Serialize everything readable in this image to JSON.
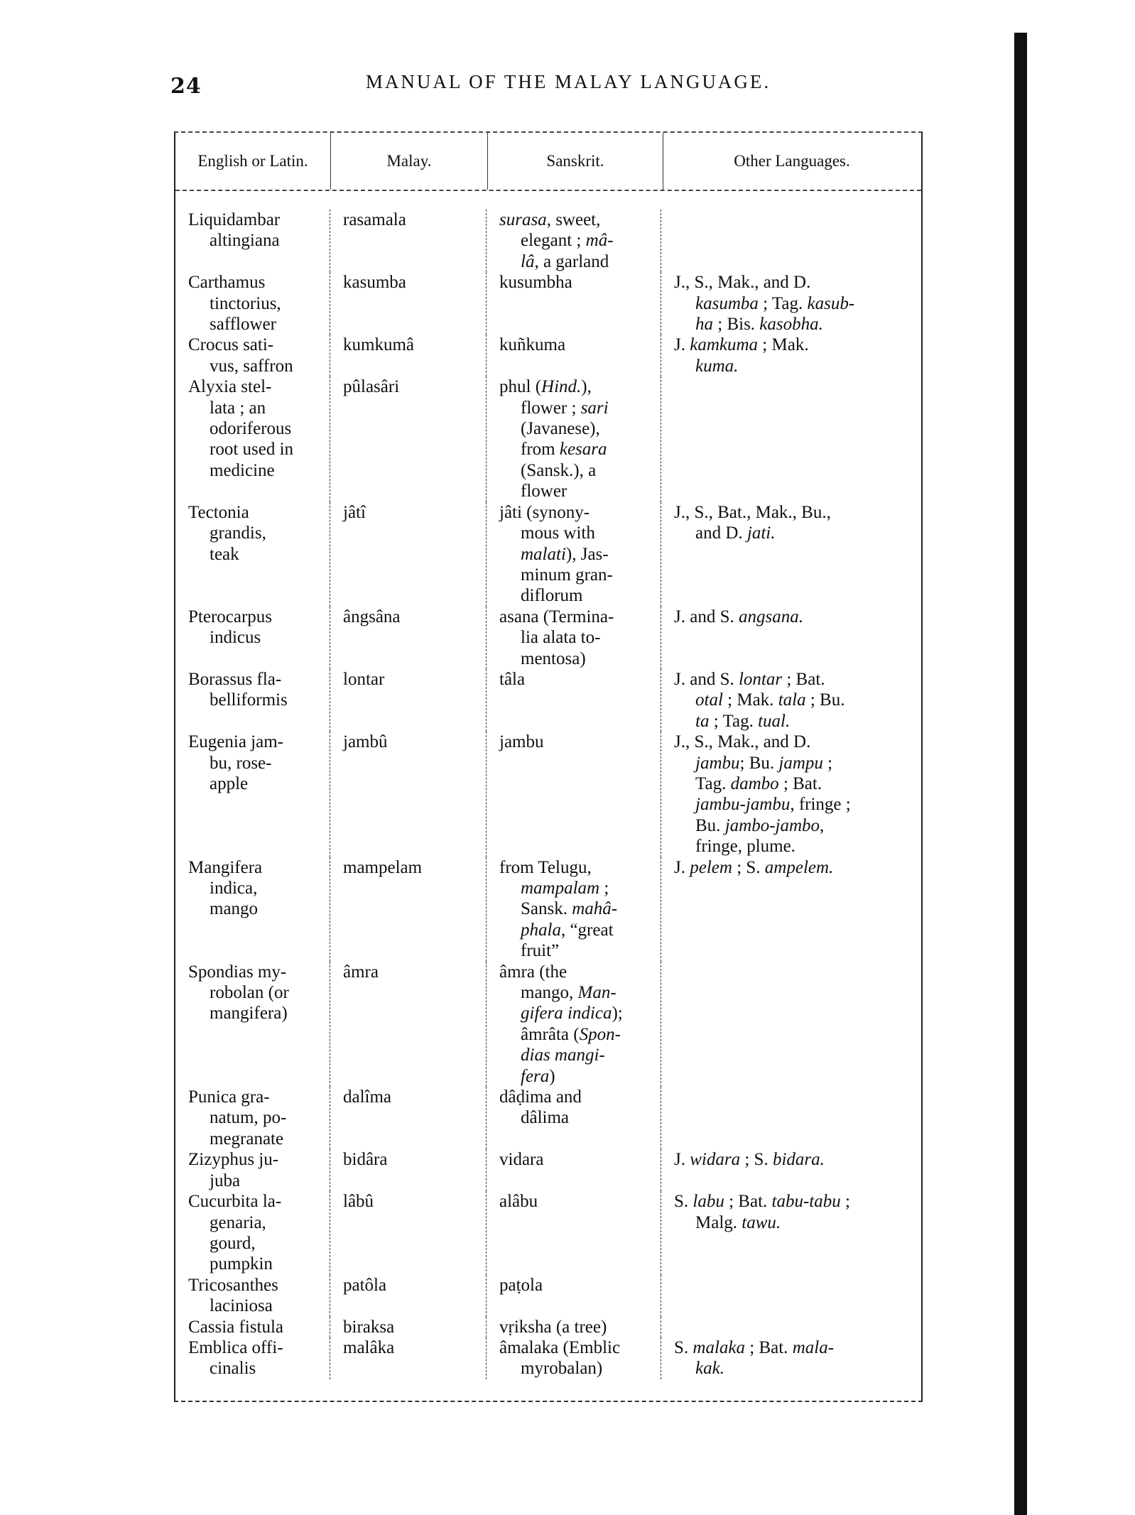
{
  "page": {
    "number": "24",
    "running_title": "MANUAL OF THE MALAY LANGUAGE."
  },
  "table": {
    "headers": [
      "English or Latin.",
      "Malay.",
      "Sanskrit.",
      "Other Languages."
    ],
    "rows": [
      [
        [
          "Liquidambar",
          "altingiana"
        ],
        [
          "rasamala"
        ],
        [
          "*surasa*, sweet,",
          "elegant ; *mâ-*",
          "*lâ*, a garland"
        ],
        []
      ],
      [
        [
          "Carthamus",
          "tinctorius,",
          "safflower"
        ],
        [
          "kasumba"
        ],
        [
          "kusumbha"
        ],
        [
          "J., S., Mak., and D.",
          "*kasumba* ; Tag. *kasub-*",
          "*ha* ; Bis. *kasobha.*"
        ]
      ],
      [
        [
          "Crocus sati-",
          "vus, saffron"
        ],
        [
          "kumkumâ"
        ],
        [
          "kuñkuma"
        ],
        [
          "J. *kamkuma* ; Mak.",
          "*kuma.*"
        ]
      ],
      [
        [
          "Alyxia stel-",
          "lata ; an",
          "odoriferous",
          "root used in",
          "medicine"
        ],
        [
          "pûlasâri"
        ],
        [
          "phul (*Hind.*),",
          "flower ; *sari*",
          "(Javanese),",
          "from *kesara*",
          "(Sansk.), a",
          "flower"
        ],
        []
      ],
      [
        [
          "Tectonia",
          "grandis,",
          "teak"
        ],
        [
          "jâtî"
        ],
        [
          "jâti (synony-",
          "mous with",
          "*malati*), Jas-",
          "minum gran-",
          "diflorum"
        ],
        [
          "J., S., Bat., Mak., Bu.,",
          "and D. *jati.*"
        ]
      ],
      [
        [
          "Pterocarpus",
          "indicus"
        ],
        [
          "ângsâna"
        ],
        [
          "asana (Termina-",
          "lia alata to-",
          "mentosa)"
        ],
        [
          "J. and S. *angsana.*"
        ]
      ],
      [
        [
          "Borassus fla-",
          "belliformis"
        ],
        [
          "lontar"
        ],
        [
          "tâla"
        ],
        [
          "J. and S. *lontar* ; Bat.",
          "*otal* ; Mak. *tala* ; Bu.",
          "*ta* ; Tag. *tual.*"
        ]
      ],
      [
        [
          "Eugenia jam-",
          "bu, rose-",
          "apple"
        ],
        [
          "jambû"
        ],
        [
          "jambu"
        ],
        [
          "J., S., Mak., and D.",
          "*jambu*; Bu. *jampu* ;",
          "Tag. *dambo* ; Bat.",
          "*jambu-jambu*, fringe ;",
          "Bu. *jambo-jambo*,",
          "fringe, plume."
        ]
      ],
      [
        [
          "Mangifera",
          "indica,",
          "mango"
        ],
        [
          "mampelam"
        ],
        [
          "from Telugu,",
          "*mampalam* ;",
          "Sansk. *mahâ-*",
          "*phala*, “great",
          "fruit”"
        ],
        [
          "J. *pelem* ; S. *ampelem.*"
        ]
      ],
      [
        [
          "Spondias my-",
          "robolan (or",
          "mangifera)"
        ],
        [
          "âmra"
        ],
        [
          "âmra (the",
          "mango, *Man-*",
          "*gifera indica*);",
          "âmrâta (*Spon-*",
          "*dias mangi-*",
          "*fera*)"
        ],
        []
      ],
      [
        [
          "Punica gra-",
          "natum, po-",
          "megranate"
        ],
        [
          "dalîma"
        ],
        [
          "dâḍima and",
          "dâlima"
        ],
        []
      ],
      [
        [
          "Zizyphus ju-",
          "juba"
        ],
        [
          "bidâra"
        ],
        [
          "vidara"
        ],
        [
          "J. *widara* ; S. *bidara.*"
        ]
      ],
      [
        [
          "Cucurbita la-",
          "genaria,",
          "gourd,",
          "pumpkin"
        ],
        [
          "lâbû"
        ],
        [
          "alâbu"
        ],
        [
          "S. *labu* ; Bat. *tabu-tabu* ;",
          "Malg. *tawu.*"
        ]
      ],
      [
        [
          "Tricosanthes",
          "laciniosa"
        ],
        [
          "patôla"
        ],
        [
          "paṭola"
        ],
        []
      ],
      [
        [
          "Cassia fistula"
        ],
        [
          "biraksa"
        ],
        [
          "vṛiksha (a tree)"
        ],
        []
      ],
      [
        [
          "Emblica offi-",
          "cinalis"
        ],
        [
          "malâka"
        ],
        [
          "âmalaka (Emblic",
          "myrobalan)"
        ],
        [
          "S. *malaka* ; Bat. *mala-*",
          "*kak.*"
        ]
      ]
    ]
  }
}
